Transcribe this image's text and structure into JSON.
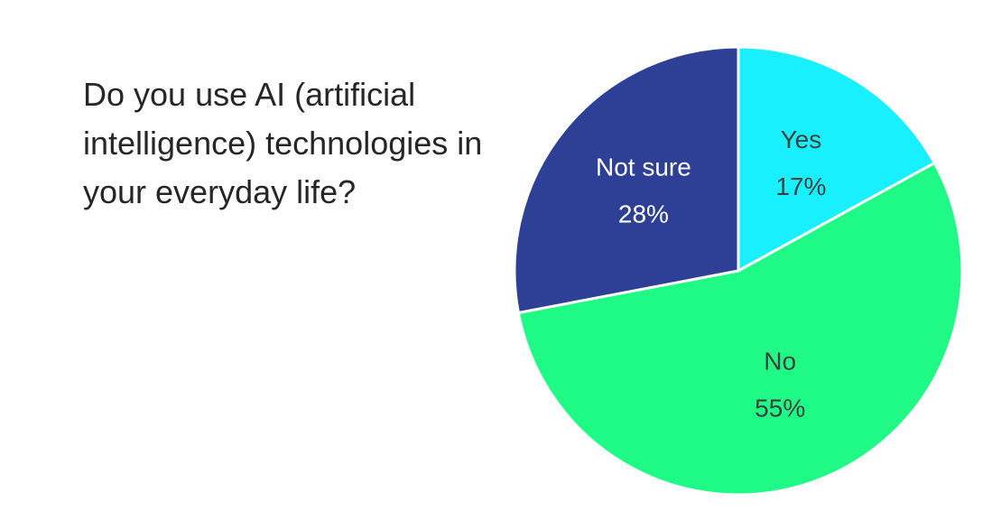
{
  "chart_data": {
    "type": "pie",
    "title": "Do you use AI (artificial intelligence) technologies in your everyday life?",
    "categories": [
      "Yes",
      "No",
      "Not sure"
    ],
    "values": [
      17,
      55,
      28
    ],
    "value_labels": [
      "17%",
      "55%",
      "28%"
    ],
    "colors": [
      "#18f0ff",
      "#1ffa86",
      "#2e3f96"
    ]
  }
}
